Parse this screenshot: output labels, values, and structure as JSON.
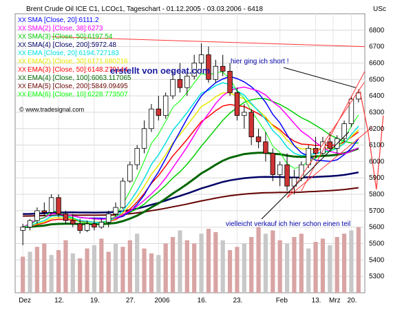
{
  "chart_data": {
    "type": "candlestick",
    "title": "Brent Crude Oil ICE C1, LCOc1, Tageschart - 01.12.2005 - 03.03.2006 - 6418",
    "currency_label": "USc",
    "watermark": "erstellt von oegeat.com",
    "copyright": "© www.tradesignal.com",
    "ylim": [
      5200,
      6900
    ],
    "yticks": [
      5300,
      5400,
      5500,
      5600,
      5700,
      5800,
      5900,
      6000,
      6100,
      6200,
      6300,
      6400,
      6500,
      6600,
      6700,
      6800
    ],
    "xlabels": [
      "Dez",
      "12.",
      "19.",
      "27.",
      "2006",
      "16.",
      "23.",
      "Feb",
      "13.",
      "20.",
      "Mrz"
    ],
    "legend": [
      {
        "text": "SMA [Close, 20]:6111.2",
        "color": "#0000ff"
      },
      {
        "text": "SMA(2) [Close, 38]:6273",
        "color": "#ff00ff"
      },
      {
        "text": "SMA(3) [Close, 50]:6197.54",
        "color": "#00cc00"
      },
      {
        "text": "SMA(4) [Close, 200]:5972.48",
        "color": "#000066"
      },
      {
        "text": "EMA [Close, 20]:6194.727183",
        "color": "#00e0e0"
      },
      {
        "text": "EMA(2) [Close, 30]:6171.680216",
        "color": "#e6e600"
      },
      {
        "text": "EMA(3) [Close, 50]:6148.279144",
        "color": "#ff0000"
      },
      {
        "text": "EMA(4) [Close, 100]:6063.117065",
        "color": "#006600"
      },
      {
        "text": "EMA(5) [Close, 200]:5849.09495",
        "color": "#660000"
      },
      {
        "text": "EMA(6) [Close, 10]:6228.773507",
        "color": "#00ff00"
      }
    ],
    "annotations": {
      "short": "hier ging ich short !",
      "sell": "vielleicht verkauf ich hier schon einen teil"
    },
    "candles": [
      [
        5580,
        5620,
        5490,
        5600
      ],
      [
        5600,
        5650,
        5580,
        5640
      ],
      [
        5640,
        5720,
        5620,
        5700
      ],
      [
        5700,
        5750,
        5670,
        5690
      ],
      [
        5690,
        5800,
        5680,
        5780
      ],
      [
        5780,
        5800,
        5660,
        5680
      ],
      [
        5680,
        5700,
        5620,
        5640
      ],
      [
        5640,
        5680,
        5600,
        5620
      ],
      [
        5620,
        5650,
        5560,
        5580
      ],
      [
        5580,
        5640,
        5570,
        5620
      ],
      [
        5620,
        5660,
        5580,
        5600
      ],
      [
        5600,
        5650,
        5590,
        5630
      ],
      [
        5630,
        5700,
        5600,
        5680
      ],
      [
        5680,
        5750,
        5660,
        5720
      ],
      [
        5720,
        5900,
        5710,
        5880
      ],
      [
        5880,
        6000,
        5870,
        5980
      ],
      [
        5980,
        6100,
        5950,
        6080
      ],
      [
        6080,
        6250,
        6050,
        6200
      ],
      [
        6200,
        6350,
        6180,
        6320
      ],
      [
        6320,
        6400,
        6250,
        6280
      ],
      [
        6280,
        6420,
        6260,
        6400
      ],
      [
        6400,
        6550,
        6380,
        6500
      ],
      [
        6500,
        6600,
        6420,
        6450
      ],
      [
        6450,
        6550,
        6400,
        6520
      ],
      [
        6520,
        6650,
        6500,
        6600
      ],
      [
        6600,
        6720,
        6560,
        6650
      ],
      [
        6650,
        6700,
        6480,
        6500
      ],
      [
        6500,
        6620,
        6480,
        6580
      ],
      [
        6580,
        6650,
        6520,
        6550
      ],
      [
        6550,
        6600,
        6400,
        6420
      ],
      [
        6420,
        6450,
        6250,
        6280
      ],
      [
        6280,
        6350,
        6200,
        6300
      ],
      [
        6300,
        6320,
        6100,
        6150
      ],
      [
        6150,
        6200,
        6080,
        6120
      ],
      [
        6120,
        6180,
        6000,
        6050
      ],
      [
        6050,
        6080,
        5880,
        5920
      ],
      [
        5920,
        6000,
        5850,
        5980
      ],
      [
        5980,
        6050,
        5820,
        5850
      ],
      [
        5850,
        5950,
        5800,
        5900
      ],
      [
        5900,
        6000,
        5880,
        5980
      ],
      [
        5980,
        6100,
        5960,
        6080
      ],
      [
        6080,
        6150,
        6020,
        6050
      ],
      [
        6050,
        6150,
        6040,
        6120
      ],
      [
        6120,
        6180,
        6060,
        6080
      ],
      [
        6080,
        6160,
        6050,
        6140
      ],
      [
        6140,
        6250,
        6120,
        6230
      ],
      [
        6230,
        6400,
        6210,
        6380
      ],
      [
        6380,
        6440,
        6360,
        6418
      ]
    ],
    "volume": [
      5420,
      5450,
      5480,
      5500,
      5430,
      5460,
      5520,
      5440,
      5410,
      5470,
      5490,
      5530,
      5450,
      5500,
      5480,
      5520,
      5560,
      5470,
      5440,
      5430,
      5500,
      5540,
      5580,
      5520,
      5500,
      5560,
      5590,
      5570,
      5520,
      5460,
      5480,
      5500,
      5540,
      5600,
      5560,
      5580,
      5520,
      5500,
      5540,
      5560,
      5470,
      5510,
      5530,
      5490,
      5540,
      5560,
      5580,
      5600
    ]
  }
}
